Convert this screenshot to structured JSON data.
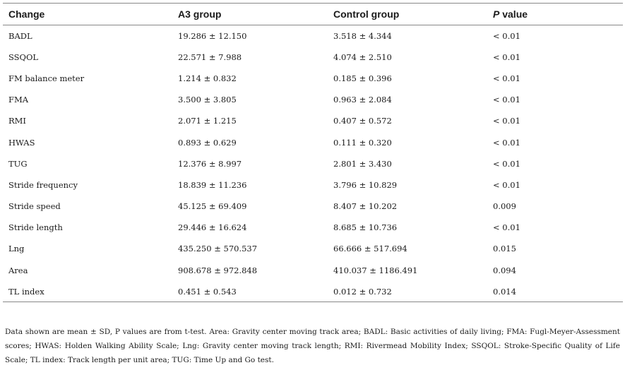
{
  "table": {
    "headers": {
      "change": "Change",
      "a3": "A3 group",
      "control": "Control group",
      "p_prefix": "P",
      "p_suffix": " value"
    },
    "rows": [
      {
        "change": "BADL",
        "a3": "19.286 ± 12.150",
        "control": "3.518 ± 4.344",
        "p": "< 0.01"
      },
      {
        "change": "SSQOL",
        "a3": "22.571 ± 7.988",
        "control": "4.074 ± 2.510",
        "p": "< 0.01"
      },
      {
        "change": "FM balance meter",
        "a3": "1.214 ± 0.832",
        "control": "0.185 ± 0.396",
        "p": "< 0.01"
      },
      {
        "change": "FMA",
        "a3": "3.500 ± 3.805",
        "control": "0.963 ± 2.084",
        "p": "< 0.01"
      },
      {
        "change": "RMI",
        "a3": "2.071 ± 1.215",
        "control": "0.407 ± 0.572",
        "p": "< 0.01"
      },
      {
        "change": "HWAS",
        "a3": "0.893 ± 0.629",
        "control": "0.111 ± 0.320",
        "p": "< 0.01"
      },
      {
        "change": "TUG",
        "a3": "12.376 ± 8.997",
        "control": "2.801 ± 3.430",
        "p": "< 0.01"
      },
      {
        "change": "Stride frequency",
        "a3": "18.839 ± 11.236",
        "control": "3.796 ± 10.829",
        "p": "< 0.01"
      },
      {
        "change": "Stride speed",
        "a3": "45.125 ± 69.409",
        "control": "8.407 ± 10.202",
        "p": "0.009"
      },
      {
        "change": "Stride length",
        "a3": "29.446 ± 16.624",
        "control": "8.685 ± 10.736",
        "p": "< 0.01"
      },
      {
        "change": "Lng",
        "a3": "435.250 ± 570.537",
        "control": "66.666 ± 517.694",
        "p": "0.015"
      },
      {
        "change": "Area",
        "a3": "908.678 ± 972.848",
        "control": "410.037 ± 1186.491",
        "p": "0.094"
      },
      {
        "change": "TL index",
        "a3": "0.451 ± 0.543",
        "control": "0.012 ± 0.732",
        "p": "0.014"
      }
    ]
  },
  "footnote": "Data shown are mean ± SD, P values are from t-test. Area: Gravity center moving track area; BADL: Basic activities of daily living; FMA: Fugl-Meyer-Assessment scores; HWAS: Holden Walking Ability Scale; Lng: Gravity center moving track length; RMI: Rivermead Mobility Index; SSQOL: Stroke-Specific Quality of Life Scale; TL index: Track length per unit area; TUG: Time Up and Go test."
}
